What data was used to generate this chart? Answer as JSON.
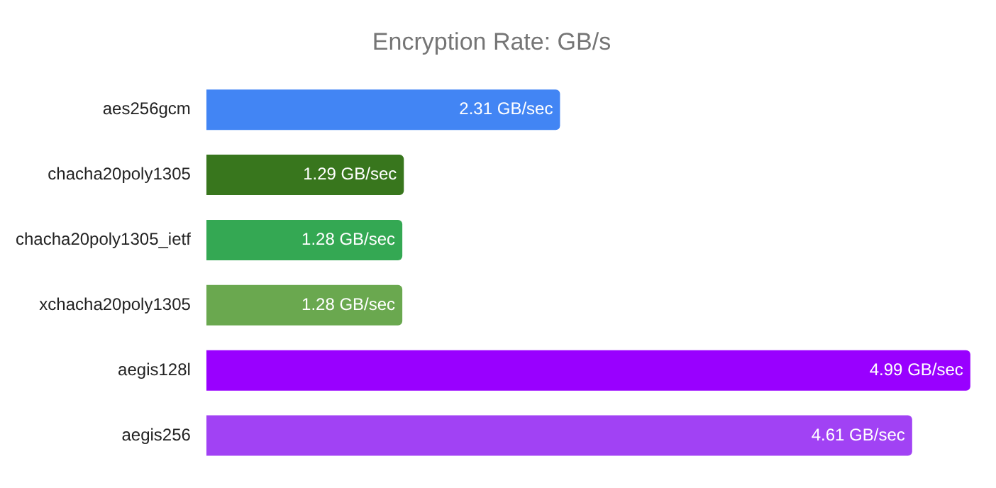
{
  "chart_data": {
    "type": "bar",
    "orientation": "horizontal",
    "title": "Encryption Rate: GB/s",
    "categories": [
      "aes256gcm",
      "chacha20poly1305",
      "chacha20poly1305_ietf",
      "xchacha20poly1305",
      "aegis128l",
      "aegis256"
    ],
    "values": [
      2.31,
      1.29,
      1.28,
      1.28,
      4.99,
      4.61
    ],
    "colors": [
      "#4285f4",
      "#38761d",
      "#34a853",
      "#6aa84f",
      "#9900ff",
      "#a142f4"
    ],
    "value_labels": [
      "2.31 GB/sec",
      "1.29 GB/sec",
      "1.28 GB/sec",
      "1.28 GB/sec",
      "4.99 GB/sec",
      "4.61 GB/sec"
    ],
    "xlim": [
      0,
      5
    ]
  }
}
